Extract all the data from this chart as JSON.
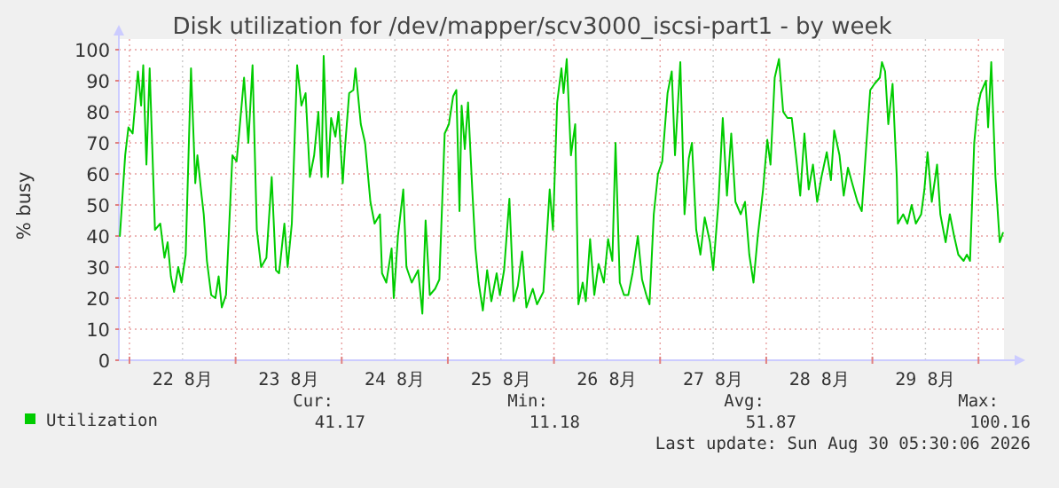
{
  "chart_data": {
    "type": "line",
    "title": "Disk utilization for /dev/mapper/scv3000_iscsi-part1 - by week",
    "ylabel": "% busy",
    "xlim": [
      "2026-08-21T21:36",
      "2026-08-30T05:46"
    ],
    "ylim": [
      0,
      100
    ],
    "xticks": [
      {
        "value": "2026-08-22T00:00",
        "label": null
      },
      {
        "value": "2026-08-22T12:00",
        "label": "22 8月"
      },
      {
        "value": "2026-08-23T00:00",
        "label": null
      },
      {
        "value": "2026-08-23T12:00",
        "label": "23 8月"
      },
      {
        "value": "2026-08-24T00:00",
        "label": null
      },
      {
        "value": "2026-08-24T12:00",
        "label": "24 8月"
      },
      {
        "value": "2026-08-25T00:00",
        "label": null
      },
      {
        "value": "2026-08-25T12:00",
        "label": "25 8月"
      },
      {
        "value": "2026-08-26T00:00",
        "label": null
      },
      {
        "value": "2026-08-26T12:00",
        "label": "26 8月"
      },
      {
        "value": "2026-08-27T00:00",
        "label": null
      },
      {
        "value": "2026-08-27T12:00",
        "label": "27 8月"
      },
      {
        "value": "2026-08-28T00:00",
        "label": null
      },
      {
        "value": "2026-08-28T12:00",
        "label": "28 8月"
      },
      {
        "value": "2026-08-29T00:00",
        "label": null
      },
      {
        "value": "2026-08-29T12:00",
        "label": "29 8月"
      },
      {
        "value": "2026-08-30T00:00",
        "label": null
      }
    ],
    "yticks": [
      0,
      10,
      20,
      30,
      40,
      50,
      60,
      70,
      80,
      90,
      100
    ],
    "grid": true,
    "legend": "bottom",
    "annotations": [
      "Cur:",
      "41.17",
      "Min:",
      "11.18",
      "Avg:",
      "51.87",
      "Max:",
      "100.16",
      "Last update: Sun Aug 30 05:30:06 2026"
    ],
    "series": [
      {
        "name": "Utilization",
        "color": "#00cc00",
        "x": [
          "2026-08-21T21:50",
          "2026-08-21T23:02",
          "2026-08-21T23:46",
          "2026-08-22T00:43",
          "2026-08-22T01:55",
          "2026-08-22T02:38",
          "2026-08-22T03:07",
          "2026-08-22T03:50",
          "2026-08-22T04:34",
          "2026-08-22T05:46",
          "2026-08-22T06:58",
          "2026-08-22T07:55",
          "2026-08-22T08:38",
          "2026-08-22T09:22",
          "2026-08-22T10:05",
          "2026-08-22T11:02",
          "2026-08-22T11:46",
          "2026-08-22T12:43",
          "2026-08-22T13:55",
          "2026-08-22T14:53",
          "2026-08-22T15:22",
          "2026-08-22T16:19",
          "2026-08-22T16:48",
          "2026-08-22T17:31",
          "2026-08-22T18:29",
          "2026-08-22T19:26",
          "2026-08-22T20:10",
          "2026-08-22T20:53",
          "2026-08-22T21:50",
          "2026-08-22T23:17",
          "2026-08-23T00:14",
          "2026-08-23T01:55",
          "2026-08-23T02:53",
          "2026-08-23T03:50",
          "2026-08-23T04:48",
          "2026-08-23T05:46",
          "2026-08-23T06:58",
          "2026-08-23T08:10",
          "2026-08-23T09:07",
          "2026-08-23T09:50",
          "2026-08-23T11:02",
          "2026-08-23T11:46",
          "2026-08-23T12:43",
          "2026-08-23T13:55",
          "2026-08-23T14:53",
          "2026-08-23T15:50",
          "2026-08-23T16:48",
          "2026-08-23T17:46",
          "2026-08-23T18:43",
          "2026-08-23T19:26",
          "2026-08-23T19:55",
          "2026-08-23T20:53",
          "2026-08-23T21:36",
          "2026-08-23T22:34",
          "2026-08-23T23:17",
          "2026-08-24T00:14",
          "2026-08-24T00:43",
          "2026-08-24T01:41",
          "2026-08-24T02:38",
          "2026-08-24T03:07",
          "2026-08-24T04:19",
          "2026-08-24T05:17",
          "2026-08-24T06:29",
          "2026-08-24T07:26",
          "2026-08-24T08:38",
          "2026-08-24T09:07",
          "2026-08-24T10:05",
          "2026-08-24T11:17",
          "2026-08-24T11:46",
          "2026-08-24T12:43",
          "2026-08-24T13:55",
          "2026-08-24T14:38",
          "2026-08-24T15:50",
          "2026-08-24T17:17",
          "2026-08-24T18:14",
          "2026-08-24T18:58",
          "2026-08-24T19:55",
          "2026-08-24T21:07",
          "2026-08-24T22:05",
          "2026-08-24T23:17",
          "2026-08-25T00:14",
          "2026-08-25T01:12",
          "2026-08-25T01:55",
          "2026-08-25T02:38",
          "2026-08-25T03:07",
          "2026-08-25T03:50",
          "2026-08-25T04:34",
          "2026-08-25T05:31",
          "2026-08-25T06:14",
          "2026-08-25T06:58",
          "2026-08-25T07:55",
          "2026-08-25T08:53",
          "2026-08-25T09:50",
          "2026-08-25T11:02",
          "2026-08-25T11:46",
          "2026-08-25T12:43",
          "2026-08-25T13:55",
          "2026-08-25T14:53",
          "2026-08-25T15:50",
          "2026-08-25T16:48",
          "2026-08-25T17:46",
          "2026-08-25T19:12",
          "2026-08-25T20:10",
          "2026-08-25T21:36",
          "2026-08-25T23:02",
          "2026-08-25T23:46",
          "2026-08-26T00:43",
          "2026-08-26T01:41",
          "2026-08-26T02:10",
          "2026-08-26T02:53",
          "2026-08-26T03:50",
          "2026-08-26T04:48",
          "2026-08-26T05:31",
          "2026-08-26T06:29",
          "2026-08-26T07:12",
          "2026-08-26T08:10",
          "2026-08-26T09:07",
          "2026-08-26T10:05",
          "2026-08-26T11:17",
          "2026-08-26T12:14",
          "2026-08-26T13:12",
          "2026-08-26T13:55",
          "2026-08-26T14:53",
          "2026-08-26T15:50",
          "2026-08-26T16:48",
          "2026-08-26T17:46",
          "2026-08-26T18:58",
          "2026-08-26T19:55",
          "2026-08-26T20:53",
          "2026-08-26T21:36",
          "2026-08-26T22:34",
          "2026-08-26T23:31",
          "2026-08-27T00:29",
          "2026-08-27T01:41",
          "2026-08-27T02:38",
          "2026-08-27T03:22",
          "2026-08-27T04:34",
          "2026-08-27T05:31",
          "2026-08-27T06:29",
          "2026-08-27T07:12",
          "2026-08-27T08:10",
          "2026-08-27T09:07",
          "2026-08-27T10:05",
          "2026-08-27T11:17",
          "2026-08-27T12:00",
          "2026-08-27T13:12",
          "2026-08-27T14:10",
          "2026-08-27T15:07",
          "2026-08-27T16:05",
          "2026-08-27T17:02",
          "2026-08-27T18:14",
          "2026-08-27T19:12",
          "2026-08-27T20:10",
          "2026-08-27T21:07",
          "2026-08-27T22:05",
          "2026-08-27T23:17",
          "2026-08-28T00:14",
          "2026-08-28T00:58",
          "2026-08-28T01:55",
          "2026-08-28T02:53",
          "2026-08-28T03:50",
          "2026-08-28T04:48",
          "2026-08-28T05:46",
          "2026-08-28T06:43",
          "2026-08-28T07:41",
          "2026-08-28T08:38",
          "2026-08-28T09:36",
          "2026-08-28T10:34",
          "2026-08-28T11:31",
          "2026-08-28T12:29",
          "2026-08-28T13:41",
          "2026-08-28T14:38",
          "2026-08-28T15:22",
          "2026-08-28T16:34",
          "2026-08-28T17:31",
          "2026-08-28T18:29",
          "2026-08-28T19:26",
          "2026-08-28T20:38",
          "2026-08-28T21:36",
          "2026-08-28T22:34",
          "2026-08-28T23:31",
          "2026-08-29T00:29",
          "2026-08-29T01:41",
          "2026-08-29T02:10",
          "2026-08-29T02:53",
          "2026-08-29T03:36",
          "2026-08-29T04:34",
          "2026-08-29T05:31",
          "2026-08-29T05:46",
          "2026-08-29T06:58",
          "2026-08-29T07:55",
          "2026-08-29T08:53",
          "2026-08-29T09:50",
          "2026-08-29T11:02",
          "2026-08-29T11:46",
          "2026-08-29T12:29",
          "2026-08-29T13:26",
          "2026-08-29T14:38",
          "2026-08-29T15:22",
          "2026-08-29T16:34",
          "2026-08-29T17:31",
          "2026-08-29T18:29",
          "2026-08-29T19:26",
          "2026-08-29T20:38",
          "2026-08-29T21:22",
          "2026-08-29T22:05",
          "2026-08-29T23:02",
          "2026-08-29T23:46",
          "2026-08-30T00:29",
          "2026-08-30T01:41",
          "2026-08-30T02:10",
          "2026-08-30T02:53",
          "2026-08-30T03:50",
          "2026-08-30T04:48",
          "2026-08-30T05:31"
        ],
        "values": [
          40,
          66,
          75,
          73,
          93,
          82,
          95,
          63,
          94,
          42,
          44,
          33,
          38,
          27,
          22,
          30,
          25,
          34,
          94,
          57,
          66,
          53,
          47,
          32,
          21,
          20,
          27,
          17,
          21,
          66,
          64,
          91,
          70,
          95,
          42,
          30,
          33,
          59,
          29,
          28,
          44,
          30,
          44,
          95,
          82,
          86,
          59,
          66,
          80,
          59,
          98,
          59,
          78,
          72,
          80,
          57,
          68,
          86,
          87,
          94,
          76,
          70,
          51,
          44,
          47,
          28,
          25,
          36,
          20,
          40,
          55,
          30,
          25,
          29,
          15,
          45,
          21,
          23,
          26,
          73,
          76,
          85,
          87,
          48,
          82,
          68,
          83,
          55,
          36,
          25,
          16,
          29,
          19,
          28,
          21,
          29,
          52,
          19,
          24,
          35,
          17,
          23,
          18,
          22,
          55,
          42,
          83,
          94,
          86,
          97,
          66,
          76,
          18,
          25,
          19,
          39,
          21,
          31,
          25,
          39,
          32,
          70,
          25,
          21,
          21,
          28,
          40,
          26,
          21,
          18,
          47,
          60,
          64,
          86,
          93,
          66,
          96,
          47,
          65,
          70,
          42,
          34,
          46,
          38,
          29,
          51,
          78,
          53,
          73,
          51,
          47,
          51,
          34,
          25,
          40,
          55,
          71,
          63,
          91,
          97,
          80,
          78,
          78,
          66,
          53,
          73,
          55,
          63,
          51,
          59,
          67,
          58,
          74,
          66,
          53,
          62,
          57,
          51,
          48,
          68,
          87,
          89,
          91,
          96,
          93,
          76,
          89,
          59,
          44,
          47,
          44,
          50,
          44,
          47,
          55,
          67,
          51,
          63,
          47,
          38,
          47,
          40,
          34,
          32,
          34,
          32,
          70,
          81,
          86,
          90,
          75,
          96,
          59,
          38,
          41
        ]
      }
    ]
  }
}
